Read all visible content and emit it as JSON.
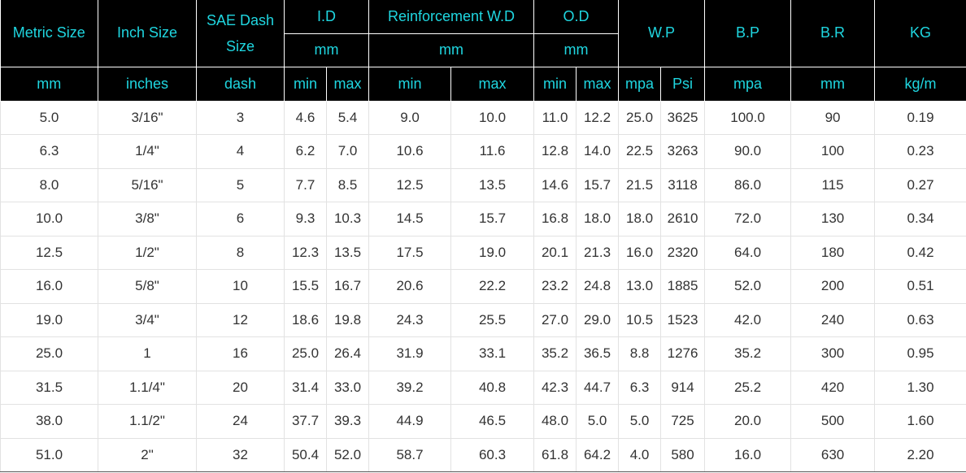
{
  "header": {
    "metric_size": "Metric Size",
    "inch_size": "Inch Size",
    "sae_dash_size": "SAE Dash Size",
    "id": "I.D",
    "id_unit": "mm",
    "reinforcement": "Reinforcement W.D",
    "reinforcement_unit": "mm",
    "od": "O.D",
    "od_unit": "mm",
    "wp": "W.P",
    "bp": "B.P",
    "br": "B.R",
    "kg": "KG"
  },
  "units": {
    "metric": "mm",
    "inch": "inches",
    "dash": "dash",
    "id_min": "min",
    "id_max": "max",
    "rwd_min": "min",
    "rwd_max": "max",
    "od_min": "min",
    "od_max": "max",
    "wp_mpa": "mpa",
    "wp_psi": "Psi",
    "bp": "mpa",
    "br": "mm",
    "kg": "kg/m"
  },
  "rows": [
    [
      "5.0",
      "3/16\"",
      "3",
      "4.6",
      "5.4",
      "9.0",
      "10.0",
      "11.0",
      "12.2",
      "25.0",
      "3625",
      "100.0",
      "90",
      "0.19"
    ],
    [
      "6.3",
      "1/4\"",
      "4",
      "6.2",
      "7.0",
      "10.6",
      "11.6",
      "12.8",
      "14.0",
      "22.5",
      "3263",
      "90.0",
      "100",
      "0.23"
    ],
    [
      "8.0",
      "5/16\"",
      "5",
      "7.7",
      "8.5",
      "12.5",
      "13.5",
      "14.6",
      "15.7",
      "21.5",
      "3118",
      "86.0",
      "115",
      "0.27"
    ],
    [
      "10.0",
      "3/8\"",
      "6",
      "9.3",
      "10.3",
      "14.5",
      "15.7",
      "16.8",
      "18.0",
      "18.0",
      "2610",
      "72.0",
      "130",
      "0.34"
    ],
    [
      "12.5",
      "1/2\"",
      "8",
      "12.3",
      "13.5",
      "17.5",
      "19.0",
      "20.1",
      "21.3",
      "16.0",
      "2320",
      "64.0",
      "180",
      "0.42"
    ],
    [
      "16.0",
      "5/8\"",
      "10",
      "15.5",
      "16.7",
      "20.6",
      "22.2",
      "23.2",
      "24.8",
      "13.0",
      "1885",
      "52.0",
      "200",
      "0.51"
    ],
    [
      "19.0",
      "3/4\"",
      "12",
      "18.6",
      "19.8",
      "24.3",
      "25.5",
      "27.0",
      "29.0",
      "10.5",
      "1523",
      "42.0",
      "240",
      "0.63"
    ],
    [
      "25.0",
      "1",
      "16",
      "25.0",
      "26.4",
      "31.9",
      "33.1",
      "35.2",
      "36.5",
      "8.8",
      "1276",
      "35.2",
      "300",
      "0.95"
    ],
    [
      "31.5",
      "1.1/4\"",
      "20",
      "31.4",
      "33.0",
      "39.2",
      "40.8",
      "42.3",
      "44.7",
      "6.3",
      "914",
      "25.2",
      "420",
      "1.30"
    ],
    [
      "38.0",
      "1.1/2\"",
      "24",
      "37.7",
      "39.3",
      "44.9",
      "46.5",
      "48.0",
      "5.0",
      "5.0",
      "725",
      "20.0",
      "500",
      "1.60"
    ],
    [
      "51.0",
      "2\"",
      "32",
      "50.4",
      "52.0",
      "58.7",
      "60.3",
      "61.8",
      "64.2",
      "4.0",
      "580",
      "16.0",
      "630",
      "2.20"
    ]
  ],
  "colors": {
    "header_bg": "#000000",
    "header_text": "#1fd6e0",
    "cell_text": "#333333",
    "grid": "#e2e2e2"
  }
}
